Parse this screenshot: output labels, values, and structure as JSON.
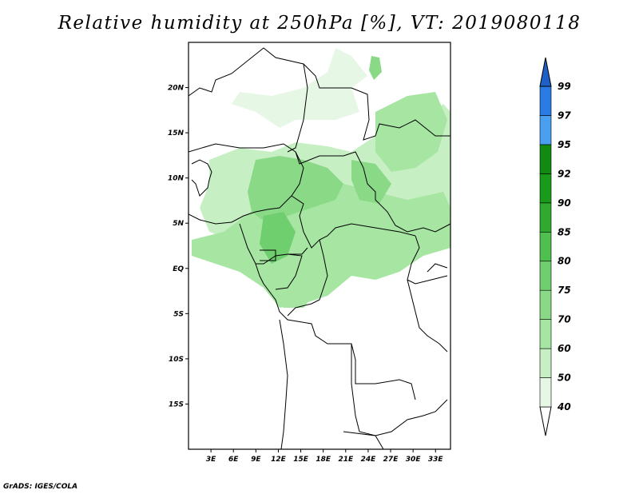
{
  "title": "Relative humidity at 250hPa [%], VT: 2019080118",
  "credit": "GrADS: IGES/COLA",
  "map": {
    "lon_range": [
      0,
      35
    ],
    "lat_range": [
      -20,
      25
    ],
    "lat_ticks": [
      {
        "value": 20,
        "label": "20N"
      },
      {
        "value": 15,
        "label": "15N"
      },
      {
        "value": 10,
        "label": "10N"
      },
      {
        "value": 5,
        "label": "5N"
      },
      {
        "value": 0,
        "label": "EQ"
      },
      {
        "value": -5,
        "label": "5S"
      },
      {
        "value": -10,
        "label": "10S"
      },
      {
        "value": -15,
        "label": "15S"
      }
    ],
    "lon_ticks": [
      {
        "value": 3,
        "label": "3E"
      },
      {
        "value": 6,
        "label": "6E"
      },
      {
        "value": 9,
        "label": "9E"
      },
      {
        "value": 12,
        "label": "12E"
      },
      {
        "value": 15,
        "label": "15E"
      },
      {
        "value": 18,
        "label": "18E"
      },
      {
        "value": 21,
        "label": "21E"
      },
      {
        "value": 24,
        "label": "24E"
      },
      {
        "value": 27,
        "label": "27E"
      },
      {
        "value": 30,
        "label": "30E"
      },
      {
        "value": 33,
        "label": "33E"
      }
    ]
  },
  "colorbar": {
    "levels": [
      "40",
      "50",
      "60",
      "70",
      "75",
      "80",
      "85",
      "90",
      "92",
      "95",
      "97",
      "99"
    ],
    "colors": [
      "#ffffff",
      "#e6f7e6",
      "#c7efc4",
      "#a6e6a2",
      "#8ad987",
      "#6fcf6f",
      "#4fc04f",
      "#2faa2f",
      "#1a9a1a",
      "#128a12",
      "#4a9ff0",
      "#2a7be4",
      "#1f5fc8"
    ]
  }
}
